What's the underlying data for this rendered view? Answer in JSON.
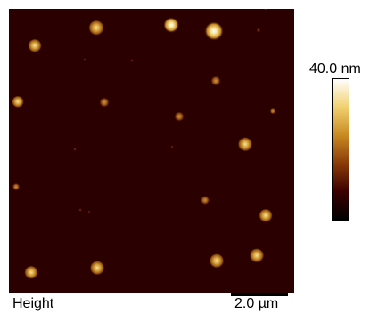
{
  "image": {
    "channel_label": "Height",
    "colorbar_max_label": "40.0 nm",
    "scale_bar_label": "2.0 µm",
    "background_color": "#2a0000",
    "colormap": [
      "#000000",
      "#3a0000",
      "#8a3a08",
      "#c98a22",
      "#f0d070",
      "#ffffff"
    ]
  }
}
